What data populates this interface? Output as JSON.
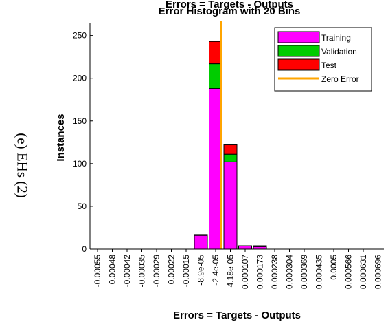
{
  "side_caption": "(e) EHs (2)",
  "chart_data": {
    "type": "bar",
    "title_line1": "Errors = Targets - Outputs",
    "title_line2": "Error Histogram with 20 Bins",
    "xlabel": "Errors = Targets - Outputs",
    "ylabel": "Instances",
    "ylim": [
      0,
      265
    ],
    "yticks": [
      0,
      50,
      100,
      150,
      200,
      250
    ],
    "categories": [
      "-0.00055",
      "-0.00048",
      "-0.00042",
      "-0.00035",
      "-0.00029",
      "-0.00022",
      "-0.00015",
      "-8.9e-05",
      "-2.4e-05",
      "4.18e-05",
      "0.000107",
      "0.000173",
      "0.000238",
      "0.000304",
      "0.000369",
      "0.000435",
      "0.0005",
      "0.000566",
      "0.000631",
      "0.000696"
    ],
    "series": [
      {
        "name": "Training",
        "color": "#ff00ff",
        "values": [
          0,
          0,
          0,
          0,
          0,
          0,
          0,
          16,
          188,
          102,
          4,
          3,
          0,
          0,
          0,
          0,
          0,
          0,
          0,
          0
        ]
      },
      {
        "name": "Validation",
        "color": "#00cc00",
        "values": [
          0,
          0,
          0,
          0,
          0,
          0,
          0,
          1,
          29,
          9,
          0,
          0,
          0,
          0,
          0,
          0,
          0,
          0,
          0,
          0
        ]
      },
      {
        "name": "Test",
        "color": "#ff0000",
        "values": [
          0,
          0,
          0,
          0,
          0,
          0,
          0,
          0,
          26,
          11,
          0,
          1,
          0,
          0,
          0,
          0,
          0,
          0,
          0,
          0
        ]
      }
    ],
    "zero_error": {
      "name": "Zero Error",
      "color": "#ffa500",
      "x": 0
    },
    "legend_position": "top-right",
    "grid": false
  }
}
